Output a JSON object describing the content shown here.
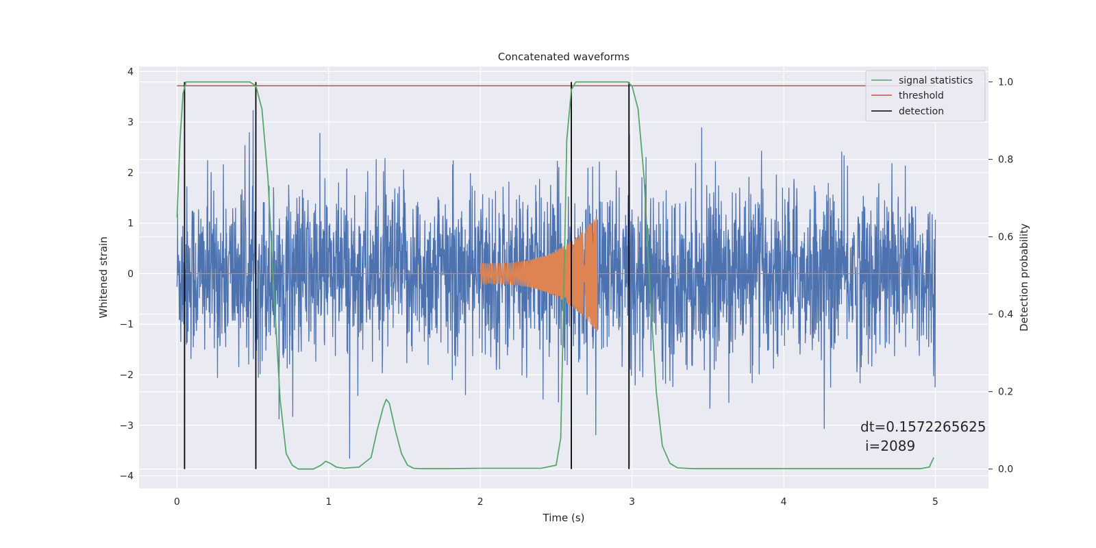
{
  "chart_data": {
    "type": "line",
    "title": "Concatenated waveforms",
    "xlabel": "Time (s)",
    "ylabel": "Whitened strain",
    "ylabel_right": "Detection probability",
    "xlim": [
      -0.25,
      5.35
    ],
    "ylim": [
      -4.25,
      4.1
    ],
    "ylim_right": [
      -0.05,
      1.04
    ],
    "xticks": [
      0,
      1,
      2,
      3,
      4,
      5
    ],
    "xtick_labels": [
      "0",
      "1",
      "2",
      "3",
      "4",
      "5"
    ],
    "yticks": [
      -4,
      -3,
      -2,
      -1,
      0,
      1,
      2,
      3,
      4
    ],
    "ytick_labels": [
      "−4",
      "−3",
      "−2",
      "−1",
      "0",
      "1",
      "2",
      "3",
      "4"
    ],
    "yticks_right": [
      0.0,
      0.2,
      0.4,
      0.6,
      0.8,
      1.0
    ],
    "ytick_labels_right": [
      "0.0",
      "0.2",
      "0.4",
      "0.6",
      "0.8",
      "1.0"
    ],
    "grid": true,
    "legend_position": "top-right",
    "colors": {
      "strain": "#4c72b0",
      "injection": "#dd8452",
      "signal_statistics": "#55a868",
      "threshold": "#c44e52",
      "detection": "#000000",
      "axes_bg": "#eaeaf2",
      "grid": "#ffffff"
    },
    "series": [
      {
        "name": "signal statistics",
        "axis": "right",
        "x": [
          0.0,
          0.02,
          0.04,
          0.06,
          0.08,
          0.1,
          0.2,
          0.3,
          0.4,
          0.48,
          0.52,
          0.56,
          0.6,
          0.64,
          0.68,
          0.72,
          0.76,
          0.8,
          0.9,
          0.95,
          0.98,
          1.01,
          1.05,
          1.1,
          1.2,
          1.28,
          1.32,
          1.36,
          1.38,
          1.4,
          1.44,
          1.48,
          1.52,
          1.56,
          1.6,
          1.8,
          2.0,
          2.2,
          2.4,
          2.5,
          2.53,
          2.55,
          2.57,
          2.6,
          2.63,
          2.66,
          2.7,
          2.8,
          2.9,
          2.97,
          3.0,
          3.04,
          3.08,
          3.12,
          3.16,
          3.2,
          3.25,
          3.3,
          3.4,
          3.6,
          4.0,
          4.5,
          4.9,
          4.96,
          4.99
        ],
        "y": [
          0.65,
          0.85,
          0.97,
          1.0,
          1.0,
          1.0,
          1.0,
          1.0,
          1.0,
          1.0,
          0.99,
          0.93,
          0.75,
          0.45,
          0.18,
          0.04,
          0.01,
          0.0,
          0.0,
          0.01,
          0.02,
          0.015,
          0.005,
          0.002,
          0.005,
          0.03,
          0.1,
          0.16,
          0.18,
          0.17,
          0.1,
          0.04,
          0.01,
          0.002,
          0.001,
          0.001,
          0.002,
          0.002,
          0.002,
          0.01,
          0.08,
          0.45,
          0.85,
          0.98,
          1.0,
          1.0,
          1.0,
          1.0,
          1.0,
          1.0,
          0.99,
          0.93,
          0.75,
          0.45,
          0.2,
          0.06,
          0.015,
          0.003,
          0.001,
          0.001,
          0.001,
          0.001,
          0.001,
          0.005,
          0.03
        ]
      },
      {
        "name": "threshold",
        "axis": "right",
        "x": [
          0.0,
          5.0
        ],
        "y": [
          0.99,
          0.99
        ]
      },
      {
        "name": "detection",
        "axis": "right",
        "type": "vlines",
        "x": [
          0.05,
          0.52,
          2.6,
          2.98
        ],
        "y_range": [
          0.0,
          1.0
        ]
      },
      {
        "name": "",
        "axis": "left",
        "type": "noise",
        "x_range": [
          0.0,
          5.0
        ],
        "sigma": 0.85
      },
      {
        "name": "",
        "axis": "left",
        "type": "chirp",
        "x_range": [
          2.0,
          2.77
        ],
        "amplitude_start": 0.2,
        "amplitude_peak": 1.15,
        "peak_time": 2.77
      }
    ],
    "legend": [
      "signal statistics",
      "threshold",
      "detection"
    ],
    "annotations": [
      "dt=0.1572265625",
      "i=2089"
    ]
  }
}
